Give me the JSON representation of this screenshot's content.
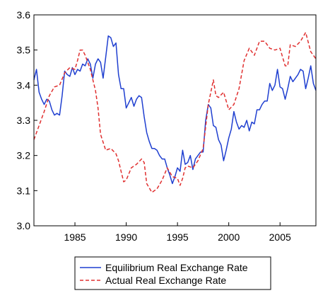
{
  "chart_data": {
    "type": "line",
    "title": "",
    "xlabel": "",
    "ylabel": "",
    "xlim": [
      1981.0,
      2008.5
    ],
    "ylim": [
      3.0,
      3.6
    ],
    "x_ticks": [
      1985,
      1990,
      1995,
      2000,
      2005
    ],
    "y_ticks": [
      3.0,
      3.1,
      3.2,
      3.3,
      3.4,
      3.5,
      3.6
    ],
    "x_tick_labels": [
      "1985",
      "1990",
      "1995",
      "2000",
      "2005"
    ],
    "y_tick_labels": [
      "3.0",
      "3.1",
      "3.2",
      "3.3",
      "3.4",
      "3.5",
      "3.6"
    ],
    "grid": false,
    "legend_position": "bottom",
    "series": [
      {
        "name": "Equilibrium Real Exchange Rate",
        "color": "#1f3fd0",
        "style": "solid",
        "points": [
          [
            1981.0,
            3.415
          ],
          [
            1981.25,
            3.445
          ],
          [
            1981.5,
            3.38
          ],
          [
            1981.75,
            3.36
          ],
          [
            1982.0,
            3.345
          ],
          [
            1982.25,
            3.36
          ],
          [
            1982.5,
            3.355
          ],
          [
            1982.75,
            3.33
          ],
          [
            1983.0,
            3.315
          ],
          [
            1983.25,
            3.32
          ],
          [
            1983.5,
            3.315
          ],
          [
            1983.75,
            3.37
          ],
          [
            1984.0,
            3.44
          ],
          [
            1984.25,
            3.43
          ],
          [
            1984.5,
            3.425
          ],
          [
            1984.75,
            3.45
          ],
          [
            1985.0,
            3.43
          ],
          [
            1985.25,
            3.445
          ],
          [
            1985.5,
            3.44
          ],
          [
            1985.75,
            3.46
          ],
          [
            1986.0,
            3.455
          ],
          [
            1986.25,
            3.475
          ],
          [
            1986.5,
            3.46
          ],
          [
            1986.75,
            3.42
          ],
          [
            1987.0,
            3.46
          ],
          [
            1987.25,
            3.475
          ],
          [
            1987.5,
            3.465
          ],
          [
            1987.75,
            3.42
          ],
          [
            1988.0,
            3.48
          ],
          [
            1988.25,
            3.54
          ],
          [
            1988.5,
            3.535
          ],
          [
            1988.75,
            3.51
          ],
          [
            1989.0,
            3.52
          ],
          [
            1989.25,
            3.43
          ],
          [
            1989.5,
            3.39
          ],
          [
            1989.75,
            3.39
          ],
          [
            1990.0,
            3.335
          ],
          [
            1990.25,
            3.35
          ],
          [
            1990.5,
            3.365
          ],
          [
            1990.75,
            3.34
          ],
          [
            1991.0,
            3.36
          ],
          [
            1991.25,
            3.37
          ],
          [
            1991.5,
            3.365
          ],
          [
            1991.75,
            3.31
          ],
          [
            1992.0,
            3.265
          ],
          [
            1992.25,
            3.24
          ],
          [
            1992.5,
            3.22
          ],
          [
            1992.75,
            3.22
          ],
          [
            1993.0,
            3.215
          ],
          [
            1993.25,
            3.2
          ],
          [
            1993.5,
            3.19
          ],
          [
            1993.75,
            3.19
          ],
          [
            1994.0,
            3.165
          ],
          [
            1994.25,
            3.145
          ],
          [
            1994.5,
            3.12
          ],
          [
            1994.75,
            3.14
          ],
          [
            1995.0,
            3.165
          ],
          [
            1995.25,
            3.155
          ],
          [
            1995.5,
            3.215
          ],
          [
            1995.75,
            3.175
          ],
          [
            1996.0,
            3.18
          ],
          [
            1996.25,
            3.2
          ],
          [
            1996.5,
            3.16
          ],
          [
            1996.75,
            3.19
          ],
          [
            1997.0,
            3.2
          ],
          [
            1997.25,
            3.21
          ],
          [
            1997.5,
            3.21
          ],
          [
            1997.75,
            3.3
          ],
          [
            1998.0,
            3.345
          ],
          [
            1998.25,
            3.335
          ],
          [
            1998.5,
            3.285
          ],
          [
            1998.75,
            3.28
          ],
          [
            1999.0,
            3.245
          ],
          [
            1999.25,
            3.23
          ],
          [
            1999.5,
            3.185
          ],
          [
            1999.75,
            3.215
          ],
          [
            2000.0,
            3.25
          ],
          [
            2000.25,
            3.275
          ],
          [
            2000.5,
            3.325
          ],
          [
            2000.75,
            3.295
          ],
          [
            2001.0,
            3.275
          ],
          [
            2001.25,
            3.285
          ],
          [
            2001.5,
            3.28
          ],
          [
            2001.75,
            3.3
          ],
          [
            2002.0,
            3.27
          ],
          [
            2002.25,
            3.295
          ],
          [
            2002.5,
            3.29
          ],
          [
            2002.75,
            3.33
          ],
          [
            2003.0,
            3.33
          ],
          [
            2003.25,
            3.345
          ],
          [
            2003.5,
            3.355
          ],
          [
            2003.75,
            3.355
          ],
          [
            2004.0,
            3.405
          ],
          [
            2004.25,
            3.385
          ],
          [
            2004.5,
            3.4
          ],
          [
            2004.75,
            3.445
          ],
          [
            2005.0,
            3.395
          ],
          [
            2005.25,
            3.39
          ],
          [
            2005.5,
            3.36
          ],
          [
            2005.75,
            3.39
          ],
          [
            2006.0,
            3.425
          ],
          [
            2006.25,
            3.41
          ],
          [
            2006.5,
            3.42
          ],
          [
            2006.75,
            3.43
          ],
          [
            2007.0,
            3.445
          ],
          [
            2007.25,
            3.44
          ],
          [
            2007.5,
            3.39
          ],
          [
            2007.75,
            3.42
          ],
          [
            2008.0,
            3.455
          ],
          [
            2008.25,
            3.405
          ],
          [
            2008.5,
            3.385
          ]
        ]
      },
      {
        "name": "Actual Real Exchange Rate",
        "color": "#e03030",
        "style": "dashed",
        "points": [
          [
            1981.0,
            3.245
          ],
          [
            1981.5,
            3.285
          ],
          [
            1982.0,
            3.325
          ],
          [
            1982.5,
            3.37
          ],
          [
            1983.0,
            3.395
          ],
          [
            1983.5,
            3.4
          ],
          [
            1984.0,
            3.435
          ],
          [
            1984.5,
            3.45
          ],
          [
            1985.0,
            3.445
          ],
          [
            1985.25,
            3.47
          ],
          [
            1985.5,
            3.5
          ],
          [
            1985.75,
            3.5
          ],
          [
            1986.0,
            3.485
          ],
          [
            1986.5,
            3.445
          ],
          [
            1987.0,
            3.385
          ],
          [
            1987.25,
            3.335
          ],
          [
            1987.5,
            3.26
          ],
          [
            1988.0,
            3.215
          ],
          [
            1988.5,
            3.22
          ],
          [
            1989.0,
            3.205
          ],
          [
            1989.25,
            3.185
          ],
          [
            1989.5,
            3.155
          ],
          [
            1989.75,
            3.125
          ],
          [
            1990.0,
            3.13
          ],
          [
            1990.5,
            3.165
          ],
          [
            1991.0,
            3.175
          ],
          [
            1991.5,
            3.19
          ],
          [
            1991.75,
            3.18
          ],
          [
            1992.0,
            3.12
          ],
          [
            1992.5,
            3.095
          ],
          [
            1993.0,
            3.105
          ],
          [
            1993.5,
            3.13
          ],
          [
            1994.0,
            3.165
          ],
          [
            1994.5,
            3.14
          ],
          [
            1995.0,
            3.135
          ],
          [
            1995.25,
            3.115
          ],
          [
            1995.5,
            3.135
          ],
          [
            1995.75,
            3.165
          ],
          [
            1996.0,
            3.17
          ],
          [
            1996.5,
            3.165
          ],
          [
            1997.0,
            3.185
          ],
          [
            1997.5,
            3.22
          ],
          [
            1998.0,
            3.345
          ],
          [
            1998.5,
            3.415
          ],
          [
            1998.75,
            3.37
          ],
          [
            1999.0,
            3.365
          ],
          [
            1999.5,
            3.38
          ],
          [
            2000.0,
            3.33
          ],
          [
            2000.5,
            3.345
          ],
          [
            2001.0,
            3.39
          ],
          [
            2001.5,
            3.47
          ],
          [
            2002.0,
            3.505
          ],
          [
            2002.5,
            3.485
          ],
          [
            2003.0,
            3.525
          ],
          [
            2003.5,
            3.525
          ],
          [
            2004.0,
            3.505
          ],
          [
            2004.5,
            3.5
          ],
          [
            2005.0,
            3.505
          ],
          [
            2005.25,
            3.48
          ],
          [
            2005.5,
            3.455
          ],
          [
            2005.75,
            3.455
          ],
          [
            2006.0,
            3.515
          ],
          [
            2006.5,
            3.51
          ],
          [
            2007.0,
            3.525
          ],
          [
            2007.5,
            3.55
          ],
          [
            2008.0,
            3.495
          ],
          [
            2008.25,
            3.485
          ],
          [
            2008.5,
            3.475
          ]
        ]
      }
    ]
  }
}
